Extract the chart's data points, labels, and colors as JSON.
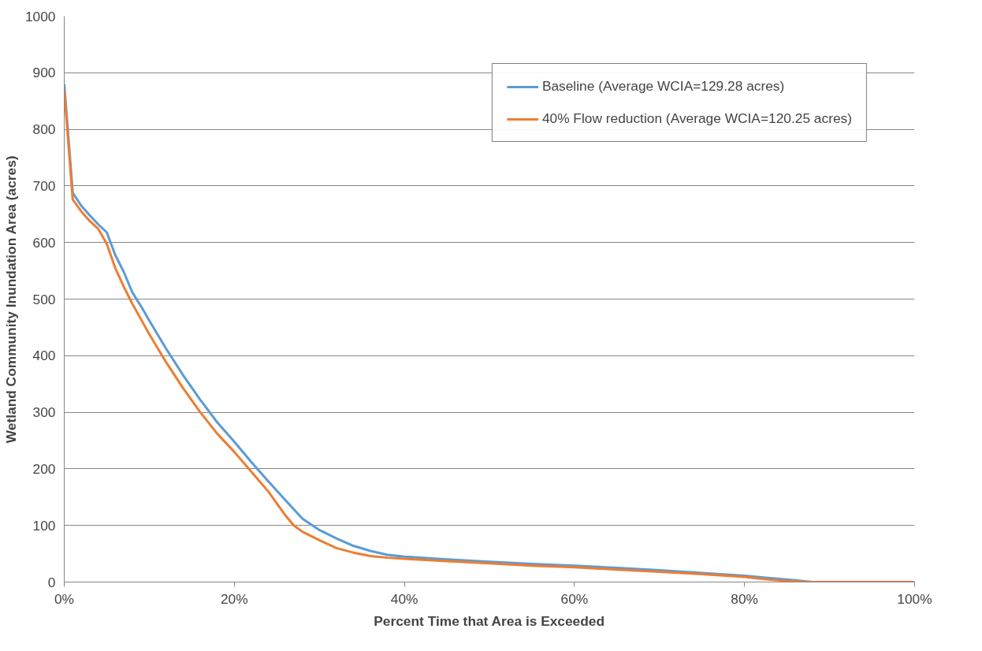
{
  "chart_data": {
    "type": "line",
    "xlabel": "Percent Time that Area is Exceeded",
    "ylabel": "Wetland Community Inundation Area (acres)",
    "xlim": [
      0,
      100
    ],
    "xticks": [
      {
        "value": 0,
        "label": "0%"
      },
      {
        "value": 20,
        "label": "20%"
      },
      {
        "value": 40,
        "label": "40%"
      },
      {
        "value": 60,
        "label": "60%"
      },
      {
        "value": 80,
        "label": "80%"
      },
      {
        "value": 100,
        "label": "100%"
      }
    ],
    "ylim": [
      0,
      1000
    ],
    "yticks": [
      0,
      100,
      200,
      300,
      400,
      500,
      600,
      700,
      800,
      900,
      1000
    ],
    "grid": "y",
    "legend": "top right",
    "marker": "none",
    "line_style": "solid",
    "series": [
      {
        "name": "Baseline (Average WCIA=129.28 acres)",
        "color": "#5b9bd5",
        "x": [
          0,
          1,
          2,
          3,
          4,
          5,
          6,
          7,
          8,
          9,
          10,
          12,
          14,
          16,
          18,
          20,
          22,
          24,
          26,
          28,
          30,
          32,
          34,
          36,
          38,
          40,
          45,
          50,
          55,
          60,
          65,
          70,
          75,
          80,
          83,
          86,
          88,
          100
        ],
        "values": [
          880,
          688,
          665,
          648,
          632,
          618,
          578,
          548,
          512,
          488,
          462,
          412,
          365,
          322,
          282,
          248,
          212,
          178,
          145,
          112,
          92,
          77,
          64,
          55,
          48,
          45,
          40,
          36,
          32,
          29,
          25,
          21,
          16,
          11,
          7,
          3,
          0,
          0
        ]
      },
      {
        "name": "40% Flow reduction (Average WCIA=120.25 acres)",
        "color": "#ed7d31",
        "x": [
          0,
          1,
          2,
          3,
          4,
          5,
          6,
          7,
          8,
          9,
          10,
          12,
          14,
          16,
          18,
          20,
          22,
          24,
          26,
          27,
          28,
          30,
          32,
          34,
          36,
          38,
          40,
          45,
          50,
          55,
          60,
          65,
          70,
          75,
          80,
          83,
          85,
          87,
          100
        ],
        "values": [
          870,
          676,
          655,
          638,
          624,
          598,
          555,
          522,
          492,
          465,
          438,
          388,
          342,
          300,
          262,
          230,
          195,
          160,
          118,
          100,
          89,
          74,
          60,
          52,
          46,
          43,
          41,
          37,
          33,
          29,
          26,
          22,
          18,
          14,
          9,
          4,
          2,
          0,
          0
        ]
      }
    ]
  }
}
